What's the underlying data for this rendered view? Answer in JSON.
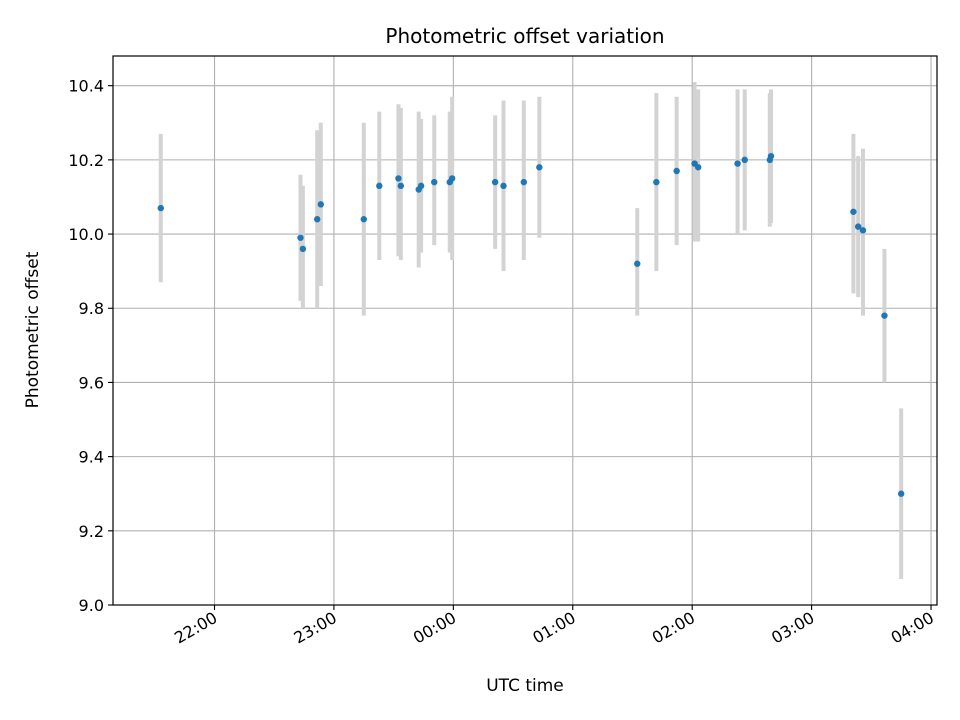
{
  "chart_data": {
    "type": "scatter",
    "title": "Photometric offset variation",
    "xlabel": "UTC time",
    "ylabel": "Photometric offset",
    "x_unit": "UTC time (HH:MM, series spans midnight; x values are decimal hours continuing past 24)",
    "xlim": [
      21.15,
      28.05
    ],
    "ylim": [
      9.0,
      10.48
    ],
    "x_ticks": [
      {
        "value": 22,
        "label": "22:00"
      },
      {
        "value": 23,
        "label": "23:00"
      },
      {
        "value": 24,
        "label": "00:00"
      },
      {
        "value": 25,
        "label": "01:00"
      },
      {
        "value": 26,
        "label": "02:00"
      },
      {
        "value": 27,
        "label": "03:00"
      },
      {
        "value": 28,
        "label": "04:00"
      }
    ],
    "y_ticks": [
      {
        "value": 9.0,
        "label": "9.0"
      },
      {
        "value": 9.2,
        "label": "9.2"
      },
      {
        "value": 9.4,
        "label": "9.4"
      },
      {
        "value": 9.6,
        "label": "9.6"
      },
      {
        "value": 9.8,
        "label": "9.8"
      },
      {
        "value": 10.0,
        "label": "10.0"
      },
      {
        "value": 10.2,
        "label": "10.2"
      },
      {
        "value": 10.4,
        "label": "10.4"
      }
    ],
    "grid": true,
    "marker_color": "#1f77b4",
    "errorbar_color": "#d3d3d3",
    "points": [
      {
        "x": 21.55,
        "y": 10.07,
        "lo": 9.87,
        "hi": 10.27
      },
      {
        "x": 22.72,
        "y": 9.99,
        "lo": 9.82,
        "hi": 10.16
      },
      {
        "x": 22.74,
        "y": 9.96,
        "lo": 9.8,
        "hi": 10.13
      },
      {
        "x": 22.86,
        "y": 10.04,
        "lo": 9.8,
        "hi": 10.28
      },
      {
        "x": 22.89,
        "y": 10.08,
        "lo": 9.86,
        "hi": 10.3
      },
      {
        "x": 23.25,
        "y": 10.04,
        "lo": 9.78,
        "hi": 10.3
      },
      {
        "x": 23.38,
        "y": 10.13,
        "lo": 9.93,
        "hi": 10.33
      },
      {
        "x": 23.54,
        "y": 10.15,
        "lo": 9.94,
        "hi": 10.35
      },
      {
        "x": 23.56,
        "y": 10.13,
        "lo": 9.93,
        "hi": 10.34
      },
      {
        "x": 23.71,
        "y": 10.12,
        "lo": 9.91,
        "hi": 10.33
      },
      {
        "x": 23.73,
        "y": 10.13,
        "lo": 9.95,
        "hi": 10.31
      },
      {
        "x": 23.84,
        "y": 10.14,
        "lo": 9.97,
        "hi": 10.32
      },
      {
        "x": 23.97,
        "y": 10.14,
        "lo": 9.95,
        "hi": 10.33
      },
      {
        "x": 23.99,
        "y": 10.15,
        "lo": 9.93,
        "hi": 10.37
      },
      {
        "x": 24.35,
        "y": 10.14,
        "lo": 9.96,
        "hi": 10.32
      },
      {
        "x": 24.42,
        "y": 10.13,
        "lo": 9.9,
        "hi": 10.36
      },
      {
        "x": 24.59,
        "y": 10.14,
        "lo": 9.93,
        "hi": 10.36
      },
      {
        "x": 24.72,
        "y": 10.18,
        "lo": 9.99,
        "hi": 10.37
      },
      {
        "x": 25.54,
        "y": 9.92,
        "lo": 9.78,
        "hi": 10.07
      },
      {
        "x": 25.7,
        "y": 10.14,
        "lo": 9.9,
        "hi": 10.38
      },
      {
        "x": 25.87,
        "y": 10.17,
        "lo": 9.97,
        "hi": 10.37
      },
      {
        "x": 26.02,
        "y": 10.19,
        "lo": 9.98,
        "hi": 10.41
      },
      {
        "x": 26.05,
        "y": 10.18,
        "lo": 9.98,
        "hi": 10.39
      },
      {
        "x": 26.38,
        "y": 10.19,
        "lo": 10.0,
        "hi": 10.39
      },
      {
        "x": 26.44,
        "y": 10.2,
        "lo": 10.01,
        "hi": 10.39
      },
      {
        "x": 26.65,
        "y": 10.2,
        "lo": 10.02,
        "hi": 10.38
      },
      {
        "x": 26.66,
        "y": 10.21,
        "lo": 10.03,
        "hi": 10.39
      },
      {
        "x": 27.35,
        "y": 10.06,
        "lo": 9.84,
        "hi": 10.27
      },
      {
        "x": 27.39,
        "y": 10.02,
        "lo": 9.83,
        "hi": 10.21
      },
      {
        "x": 27.43,
        "y": 10.01,
        "lo": 9.78,
        "hi": 10.23
      },
      {
        "x": 27.61,
        "y": 9.78,
        "lo": 9.6,
        "hi": 9.96
      },
      {
        "x": 27.75,
        "y": 9.3,
        "lo": 9.07,
        "hi": 9.53
      }
    ]
  }
}
